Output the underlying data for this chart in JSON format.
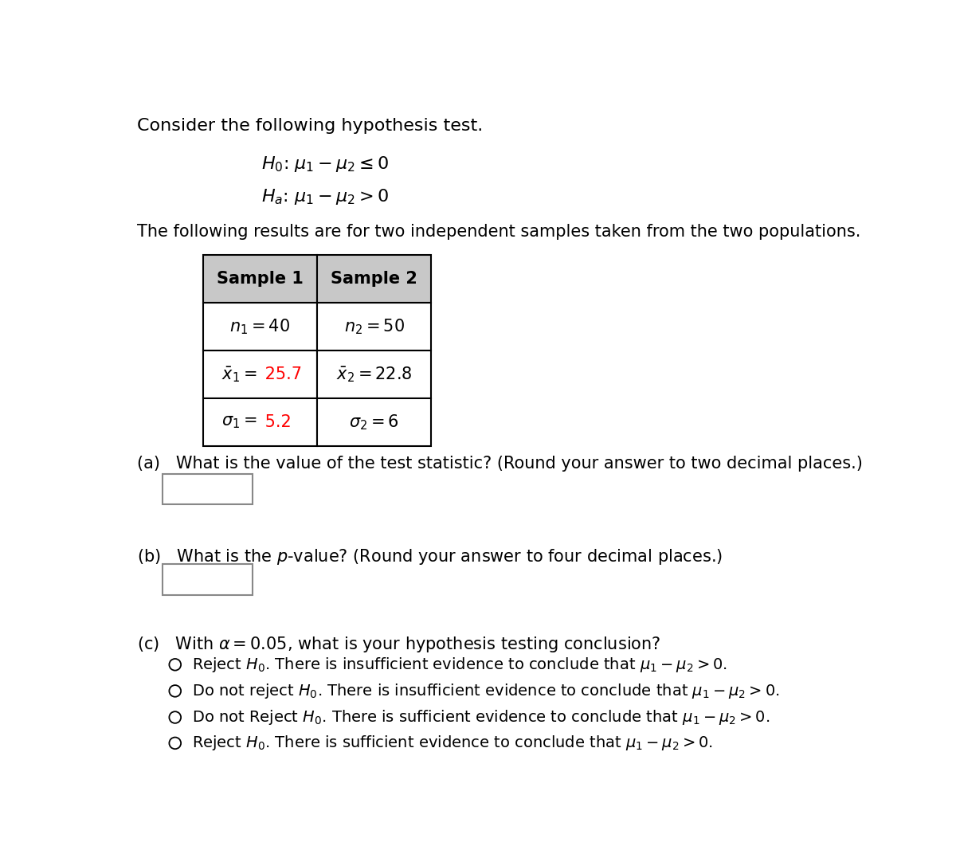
{
  "bg_color": "#ffffff",
  "title_text": "Consider the following hypothesis test.",
  "h0_text": "$H_0$: $\\mu_1 - \\mu_2 \\leq 0$",
  "ha_text": "$H_a$: $\\mu_1 - \\mu_2 > 0$",
  "table_intro": "The following results are for two independent samples taken from the two populations.",
  "qa_text": "(a)   What is the value of the test statistic? (Round your answer to two decimal places.)",
  "qb_text": "(b)   What is the $p$-value? (Round your answer to four decimal places.)",
  "qc_text": "(c)   With $\\alpha = 0.05$, what is your hypothesis testing conclusion?",
  "option1": "Reject $H_0$. There is insufficient evidence to conclude that $\\mu_1 - \\mu_2 > 0$.",
  "option2": "Do not reject $H_0$. There is insufficient evidence to conclude that $\\mu_1 - \\mu_2 > 0$.",
  "option3": "Do not Reject $H_0$. There is sufficient evidence to conclude that $\\mu_1 - \\mu_2 > 0$.",
  "option4": "Reject $H_0$. There is sufficient evidence to conclude that $\\mu_1 - \\mu_2 > 0$.",
  "red_color": "#ff0000",
  "black_color": "#000000",
  "gray_header": "#c8c8c8",
  "table_border": "#000000",
  "font_size_title": 16,
  "font_size_body": 15,
  "font_size_table": 15,
  "font_size_hyp": 16
}
